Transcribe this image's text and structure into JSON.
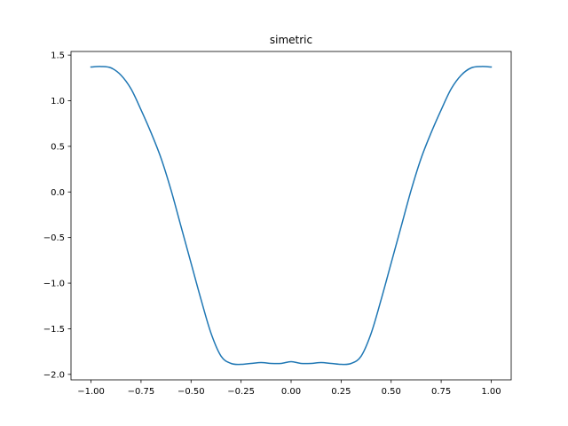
{
  "chart_data": {
    "type": "line",
    "title": "simetric",
    "xlabel": "",
    "ylabel": "",
    "xlim": [
      -1.1,
      1.1
    ],
    "ylim": [
      -2.06,
      1.54
    ],
    "grid": false,
    "x_ticks": [
      -1.0,
      -0.75,
      -0.5,
      -0.25,
      0.0,
      0.25,
      0.5,
      0.75,
      1.0
    ],
    "x_tick_labels": [
      "−1.00",
      "−0.75",
      "−0.50",
      "−0.25",
      "0.00",
      "0.25",
      "0.50",
      "0.75",
      "1.00"
    ],
    "y_ticks": [
      1.5,
      1.0,
      0.5,
      0.0,
      -0.5,
      -1.0,
      -1.5,
      -2.0
    ],
    "y_tick_labels": [
      "1.5",
      "1.0",
      "0.5",
      "0.0",
      "−0.5",
      "−1.0",
      "−1.5",
      "−2.0"
    ],
    "series": [
      {
        "color": "#1f77b4",
        "x": [
          -1.0,
          -0.95,
          -0.9,
          -0.85,
          -0.8,
          -0.75,
          -0.7,
          -0.65,
          -0.6,
          -0.55,
          -0.5,
          -0.45,
          -0.4,
          -0.35,
          -0.3,
          -0.25,
          -0.2,
          -0.15,
          -0.1,
          -0.05,
          0.0,
          0.05,
          0.1,
          0.15,
          0.2,
          0.25,
          0.3,
          0.35,
          0.4,
          0.45,
          0.5,
          0.55,
          0.6,
          0.65,
          0.7,
          0.75,
          0.8,
          0.85,
          0.9,
          0.95,
          1.0
        ],
        "y": [
          1.37,
          1.375,
          1.36,
          1.28,
          1.13,
          0.9,
          0.65,
          0.37,
          0.02,
          -0.38,
          -0.78,
          -1.18,
          -1.55,
          -1.8,
          -1.88,
          -1.89,
          -1.88,
          -1.87,
          -1.88,
          -1.88,
          -1.86,
          -1.88,
          -1.88,
          -1.87,
          -1.88,
          -1.89,
          -1.88,
          -1.8,
          -1.55,
          -1.18,
          -0.78,
          -0.38,
          0.02,
          0.37,
          0.65,
          0.9,
          1.13,
          1.28,
          1.36,
          1.375,
          1.37
        ]
      }
    ]
  }
}
